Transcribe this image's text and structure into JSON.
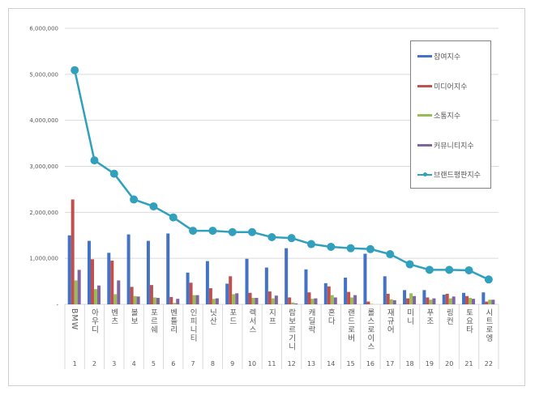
{
  "chart_data": {
    "type": "bar+line",
    "categories": [
      "BMW",
      "아우디",
      "벤츠",
      "볼보",
      "포르쉐",
      "벤틀리",
      "인피니티",
      "닛산",
      "포드",
      "렉서스",
      "지프",
      "람보르기니",
      "캐딜락",
      "혼다",
      "랜드로버",
      "롤스로이스",
      "재규어",
      "미니",
      "푸조",
      "링컨",
      "토요타",
      "시트로엥"
    ],
    "ranks": [
      "1",
      "2",
      "3",
      "4",
      "5",
      "6",
      "7",
      "8",
      "9",
      "10",
      "11",
      "12",
      "13",
      "14",
      "15",
      "16",
      "17",
      "18",
      "19",
      "20",
      "21",
      "22"
    ],
    "yticks": [
      "-",
      "1,000,000",
      "2,000,000",
      "3,000,000",
      "4,000,000",
      "5,000,000",
      "6,000,000"
    ],
    "ylim": [
      0,
      6000000
    ],
    "grid": true,
    "legend_position": "right",
    "series": [
      {
        "name": "참여지수",
        "type": "bar",
        "color": "#4472c4",
        "values": [
          1500000,
          1380000,
          1120000,
          1520000,
          1380000,
          1540000,
          690000,
          940000,
          450000,
          990000,
          800000,
          1220000,
          760000,
          460000,
          580000,
          1100000,
          610000,
          310000,
          310000,
          210000,
          250000,
          260000
        ]
      },
      {
        "name": "미디어지수",
        "type": "bar",
        "color": "#c0504d",
        "values": [
          2280000,
          980000,
          950000,
          380000,
          420000,
          160000,
          470000,
          350000,
          610000,
          250000,
          280000,
          150000,
          260000,
          390000,
          270000,
          60000,
          230000,
          130000,
          150000,
          230000,
          180000,
          60000
        ]
      },
      {
        "name": "소통지수",
        "type": "bar",
        "color": "#9bbb59",
        "values": [
          520000,
          330000,
          220000,
          180000,
          150000,
          30000,
          200000,
          120000,
          220000,
          140000,
          130000,
          40000,
          120000,
          200000,
          150000,
          10000,
          110000,
          240000,
          100000,
          130000,
          140000,
          100000
        ]
      },
      {
        "name": "커뮤니티지수",
        "type": "bar",
        "color": "#8064a2",
        "values": [
          750000,
          410000,
          520000,
          170000,
          140000,
          120000,
          200000,
          130000,
          240000,
          140000,
          190000,
          20000,
          130000,
          150000,
          200000,
          0,
          90000,
          180000,
          130000,
          170000,
          120000,
          100000
        ]
      },
      {
        "name": "브랜드평판지수",
        "type": "line",
        "color": "#31a0bc",
        "values": [
          5090000,
          3130000,
          2840000,
          2280000,
          2130000,
          1890000,
          1600000,
          1600000,
          1570000,
          1570000,
          1460000,
          1440000,
          1310000,
          1250000,
          1220000,
          1200000,
          1090000,
          870000,
          750000,
          750000,
          740000,
          540000
        ]
      }
    ]
  }
}
